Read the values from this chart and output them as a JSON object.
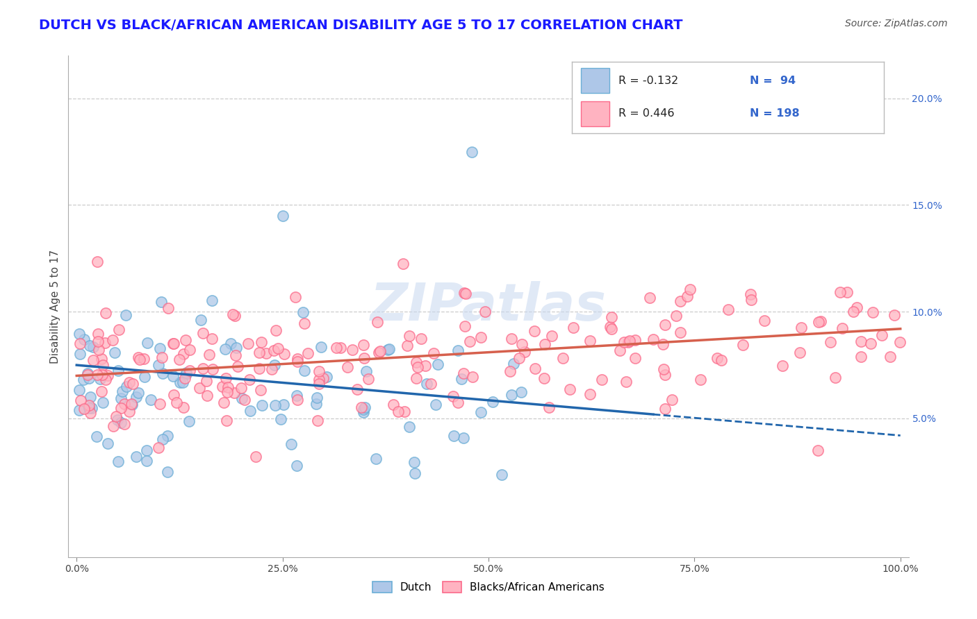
{
  "title": "DUTCH VS BLACK/AFRICAN AMERICAN DISABILITY AGE 5 TO 17 CORRELATION CHART",
  "source": "Source: ZipAtlas.com",
  "ylabel": "Disability Age 5 to 17",
  "legend_dutch_label": "Dutch",
  "legend_black_label": "Blacks/African Americans",
  "dutch_R": -0.132,
  "dutch_N": 94,
  "black_R": 0.446,
  "black_N": 198,
  "dutch_color_face": "#aec7e8",
  "dutch_color_edge": "#6baed6",
  "black_color_face": "#ffb3c1",
  "black_color_edge": "#fb6a8a",
  "dutch_line_color": "#2166ac",
  "black_line_color": "#d6604d",
  "background_color": "#ffffff",
  "watermark": "ZIPatlas",
  "title_color": "#1a1aff",
  "title_fontsize": 14,
  "source_fontsize": 10,
  "axis_label_fontsize": 11,
  "tick_fontsize": 10,
  "legend_fontsize": 12,
  "y_min": -1.5,
  "y_max": 22.0,
  "yticks": [
    5.0,
    10.0,
    15.0,
    20.0
  ],
  "xticks": [
    0,
    25,
    50,
    75,
    100
  ],
  "seed": 12345
}
